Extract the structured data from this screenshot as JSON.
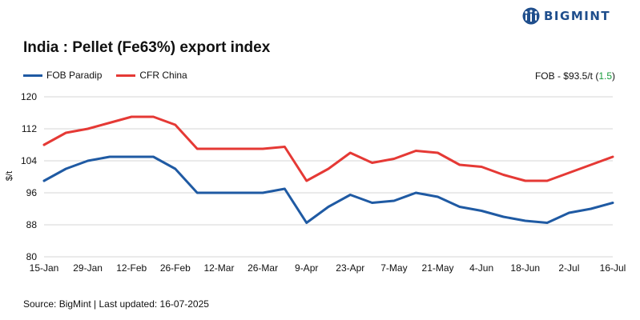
{
  "brand": {
    "name": "BIGMINT",
    "color": "#1f4e8c"
  },
  "title": "India : Pellet (Fe63%) export index",
  "summary": {
    "prefix": "FOB - $93.5/t (",
    "change": "1.5",
    "suffix": ")",
    "change_color": "#1a9c3e"
  },
  "source": "Source: BigMint | Last updated: 16-07-2025",
  "chart_data": {
    "type": "line",
    "ylabel": "$/t",
    "ylim": [
      80,
      120
    ],
    "yticks": [
      80,
      88,
      96,
      104,
      112,
      120
    ],
    "grid": true,
    "legend_position": "top-left",
    "x_labels": [
      "15-Jan",
      "29-Jan",
      "12-Feb",
      "26-Feb",
      "12-Mar",
      "26-Mar",
      "9-Apr",
      "23-Apr",
      "7-May",
      "21-May",
      "4-Jun",
      "18-Jun",
      "2-Jul",
      "16-Jul"
    ],
    "x": [
      "15-Jan",
      "22-Jan",
      "29-Jan",
      "5-Feb",
      "12-Feb",
      "19-Feb",
      "26-Feb",
      "5-Mar",
      "12-Mar",
      "19-Mar",
      "26-Mar",
      "2-Apr",
      "9-Apr",
      "16-Apr",
      "23-Apr",
      "30-Apr",
      "7-May",
      "14-May",
      "21-May",
      "28-May",
      "4-Jun",
      "11-Jun",
      "18-Jun",
      "25-Jun",
      "2-Jul",
      "9-Jul",
      "16-Jul"
    ],
    "series": [
      {
        "name": "FOB Paradip",
        "color": "#1f5aa3",
        "values": [
          99,
          102,
          104,
          105,
          105,
          105,
          102,
          96,
          96,
          96,
          96,
          97,
          88.5,
          92.5,
          95.5,
          93.5,
          94,
          96,
          95,
          92.5,
          91.5,
          90,
          89,
          88.5,
          91,
          92,
          93.5
        ]
      },
      {
        "name": "CFR China",
        "color": "#e53935",
        "values": [
          108,
          111,
          112,
          113.5,
          115,
          115,
          113,
          107,
          107,
          107,
          107,
          107.5,
          99,
          102,
          106,
          103.5,
          104.5,
          106.5,
          106,
          103,
          102.5,
          100.5,
          99,
          99,
          101,
          103,
          105
        ]
      }
    ]
  }
}
